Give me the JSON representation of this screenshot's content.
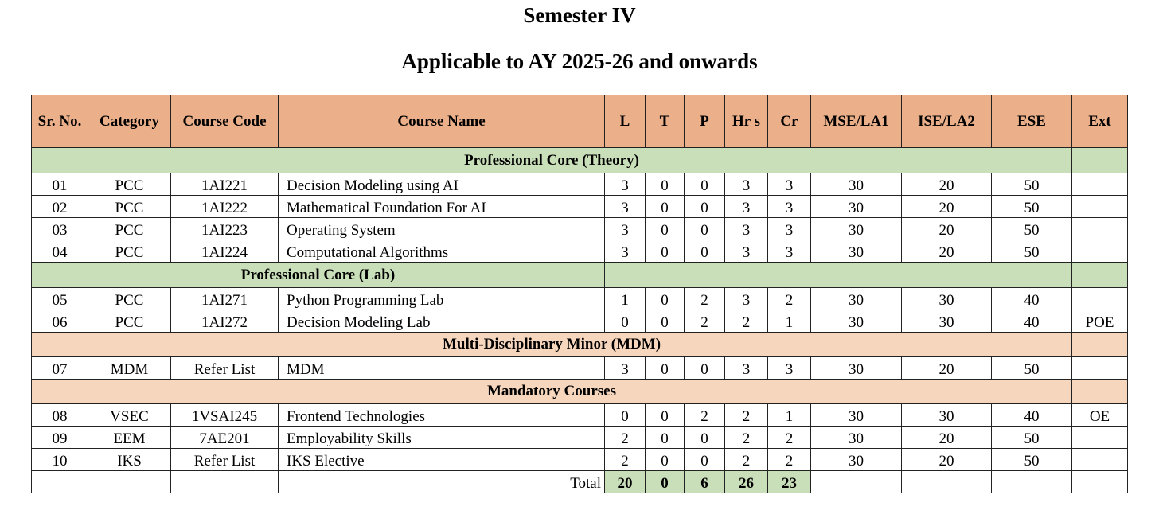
{
  "title": "Semester IV",
  "subtitle": "Applicable to AY 2025-26 and onwards",
  "colors": {
    "header": "#EBB08A",
    "section_green": "#C9DFB9",
    "section_peach": "#F6D6BC"
  },
  "headers": [
    "Sr. No.",
    "Category",
    "Course Code",
    "Course Name",
    "L",
    "T",
    "P",
    "Hr s",
    "Cr",
    "MSE/LA1",
    "ISE/LA2",
    "ESE",
    "Ext"
  ],
  "sections": {
    "theory": "Professional Core (Theory)",
    "lab": "Professional Core (Lab)",
    "mdm": "Multi-Disciplinary Minor (MDM)",
    "mandatory": "Mandatory Courses"
  },
  "rows": [
    [
      "01",
      "PCC",
      "1AI221",
      "Decision Modeling using AI",
      "3",
      "0",
      "0",
      "3",
      "3",
      "30",
      "20",
      "50",
      ""
    ],
    [
      "02",
      "PCC",
      "1AI222",
      "Mathematical Foundation For AI",
      "3",
      "0",
      "0",
      "3",
      "3",
      "30",
      "20",
      "50",
      ""
    ],
    [
      "03",
      "PCC",
      "1AI223",
      "Operating System",
      "3",
      "0",
      "0",
      "3",
      "3",
      "30",
      "20",
      "50",
      ""
    ],
    [
      "04",
      "PCC",
      "1AI224",
      "Computational Algorithms",
      "3",
      "0",
      "0",
      "3",
      "3",
      "30",
      "20",
      "50",
      ""
    ],
    [
      "05",
      "PCC",
      "1AI271",
      "Python Programming Lab",
      "1",
      "0",
      "2",
      "3",
      "2",
      "30",
      "30",
      "40",
      ""
    ],
    [
      "06",
      "PCC",
      "1AI272",
      "Decision Modeling Lab",
      "0",
      "0",
      "2",
      "2",
      "1",
      "30",
      "30",
      "40",
      "POE"
    ],
    [
      "07",
      "MDM",
      "Refer List",
      "MDM",
      "3",
      "0",
      "0",
      "3",
      "3",
      "30",
      "20",
      "50",
      ""
    ],
    [
      "08",
      "VSEC",
      "1VSAI245",
      "Frontend Technologies",
      "0",
      "0",
      "2",
      "2",
      "1",
      "30",
      "30",
      "40",
      "OE"
    ],
    [
      "09",
      "EEM",
      "7AE201",
      "Employability Skills",
      "2",
      "0",
      "0",
      "2",
      "2",
      "30",
      "20",
      "50",
      ""
    ],
    [
      "10",
      "IKS",
      "Refer List",
      "IKS Elective",
      "2",
      "0",
      "0",
      "2",
      "2",
      "30",
      "20",
      "50",
      ""
    ]
  ],
  "total": {
    "label": "Total",
    "L": "20",
    "T": "0",
    "P": "6",
    "Hrs": "26",
    "Cr": "23"
  }
}
